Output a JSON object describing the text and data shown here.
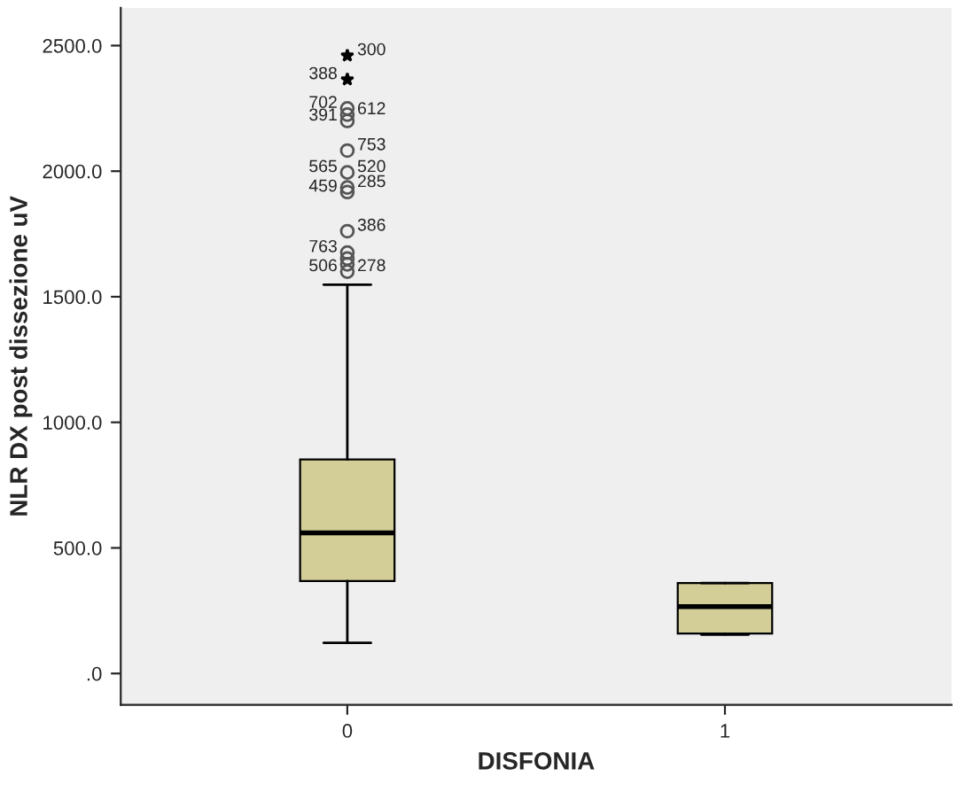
{
  "chart_data": {
    "type": "box",
    "xlabel": "DISFONIA",
    "ylabel": "NLR DX post dissezione uV",
    "categories": [
      "0",
      "1"
    ],
    "color": "#d3ce97",
    "boxes": [
      {
        "low": 122,
        "q1": 368,
        "median": 560,
        "q3": 852,
        "high": 1548
      },
      {
        "low": 155,
        "q1": 159,
        "median": 266,
        "q3": 360,
        "high": 360
      }
    ],
    "series": [
      {
        "type": "scatter",
        "x": [
          "0",
          "0"
        ],
        "values": [
          2460,
          2365
        ],
        "marker": "star",
        "color": "#000000"
      },
      {
        "type": "scatter",
        "x": [
          "0",
          "0",
          "0",
          "0",
          "0",
          "0",
          "0",
          "0",
          "0",
          "0",
          "0",
          "0"
        ],
        "values": [
          2250,
          2225,
          2200,
          2082,
          1995,
          1935,
          1917,
          1761,
          1676,
          1652,
          1629,
          1600
        ],
        "marker": "circle",
        "color": "#555555"
      }
    ],
    "ylim": [
      -125,
      2650
    ],
    "yticks": [
      {
        "value": 0,
        "label": ".0"
      },
      {
        "value": 500,
        "label": "500.0"
      },
      {
        "value": 1000,
        "label": "1000.0"
      },
      {
        "value": 1500,
        "label": "1500.0"
      },
      {
        "value": 2000,
        "label": "2000.0"
      },
      {
        "value": 2500,
        "label": "2500.0"
      }
    ],
    "grid": false,
    "legend": false,
    "annotations": [
      {
        "text": "388",
        "x": "0",
        "y": 2365
      },
      {
        "text": "300",
        "x": "0",
        "y": 2460
      },
      {
        "text": "702",
        "x": "0",
        "y": 2250
      },
      {
        "text": "612",
        "x": "0",
        "y": 2225
      },
      {
        "text": "391",
        "x": "0",
        "y": 2200
      },
      {
        "text": "753",
        "x": "0",
        "y": 2082
      },
      {
        "text": "565",
        "x": "0",
        "y": 1995
      },
      {
        "text": "520",
        "x": "0",
        "y": 1995
      },
      {
        "text": "459",
        "x": "0",
        "y": 1917
      },
      {
        "text": "285",
        "x": "0",
        "y": 1935
      },
      {
        "text": "763",
        "x": "0",
        "y": 1676
      },
      {
        "text": "386",
        "x": "0",
        "y": 1761
      },
      {
        "text": "506",
        "x": "0",
        "y": 1600
      },
      {
        "text": "278",
        "x": "0",
        "y": 1600
      }
    ]
  }
}
